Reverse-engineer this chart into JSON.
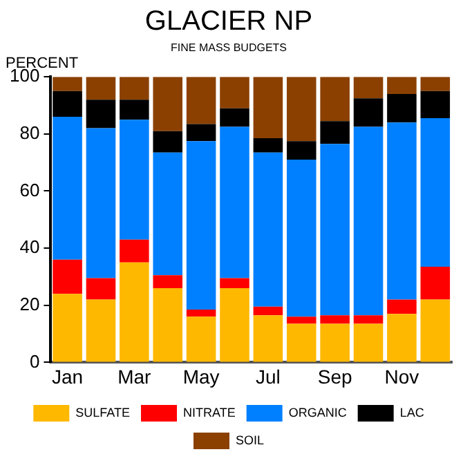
{
  "chart_data": {
    "type": "bar",
    "title": "GLACIER NP",
    "subtitle": "FINE MASS BUDGETS",
    "ylabel": "PERCENT",
    "categories": [
      "Jan",
      null,
      "Mar",
      null,
      "May",
      null,
      "Jul",
      null,
      "Sep",
      null,
      "Nov",
      null
    ],
    "stacked": true,
    "ylim": [
      0,
      100
    ],
    "yticks": [
      0,
      20,
      40,
      60,
      80,
      100
    ],
    "grid": false,
    "legend": "bottom",
    "series": [
      {
        "name": "SULFATE",
        "color": "#ffb800",
        "values": [
          24,
          22,
          35,
          26,
          16,
          26,
          16.5,
          13.5,
          13.5,
          13.5,
          17,
          22
        ]
      },
      {
        "name": "NITRATE",
        "color": "#ff0000",
        "values": [
          12,
          7.5,
          8,
          4.5,
          2.5,
          3.5,
          3,
          2.5,
          3,
          3,
          5,
          11.5
        ]
      },
      {
        "name": "ORGANIC",
        "color": "#0080ff",
        "values": [
          50,
          52.5,
          42,
          43,
          59,
          53,
          54,
          55,
          60,
          66,
          62,
          52
        ]
      },
      {
        "name": "LAC",
        "color": "#000000",
        "values": [
          9,
          10,
          7,
          7.5,
          6,
          6.5,
          5,
          6.5,
          8,
          10,
          10,
          9.5
        ]
      },
      {
        "name": "SOIL",
        "color": "#8b4000",
        "values": [
          5,
          8,
          8,
          19,
          16.5,
          11,
          21.5,
          22.5,
          15.5,
          7.5,
          6,
          5
        ]
      }
    ]
  }
}
